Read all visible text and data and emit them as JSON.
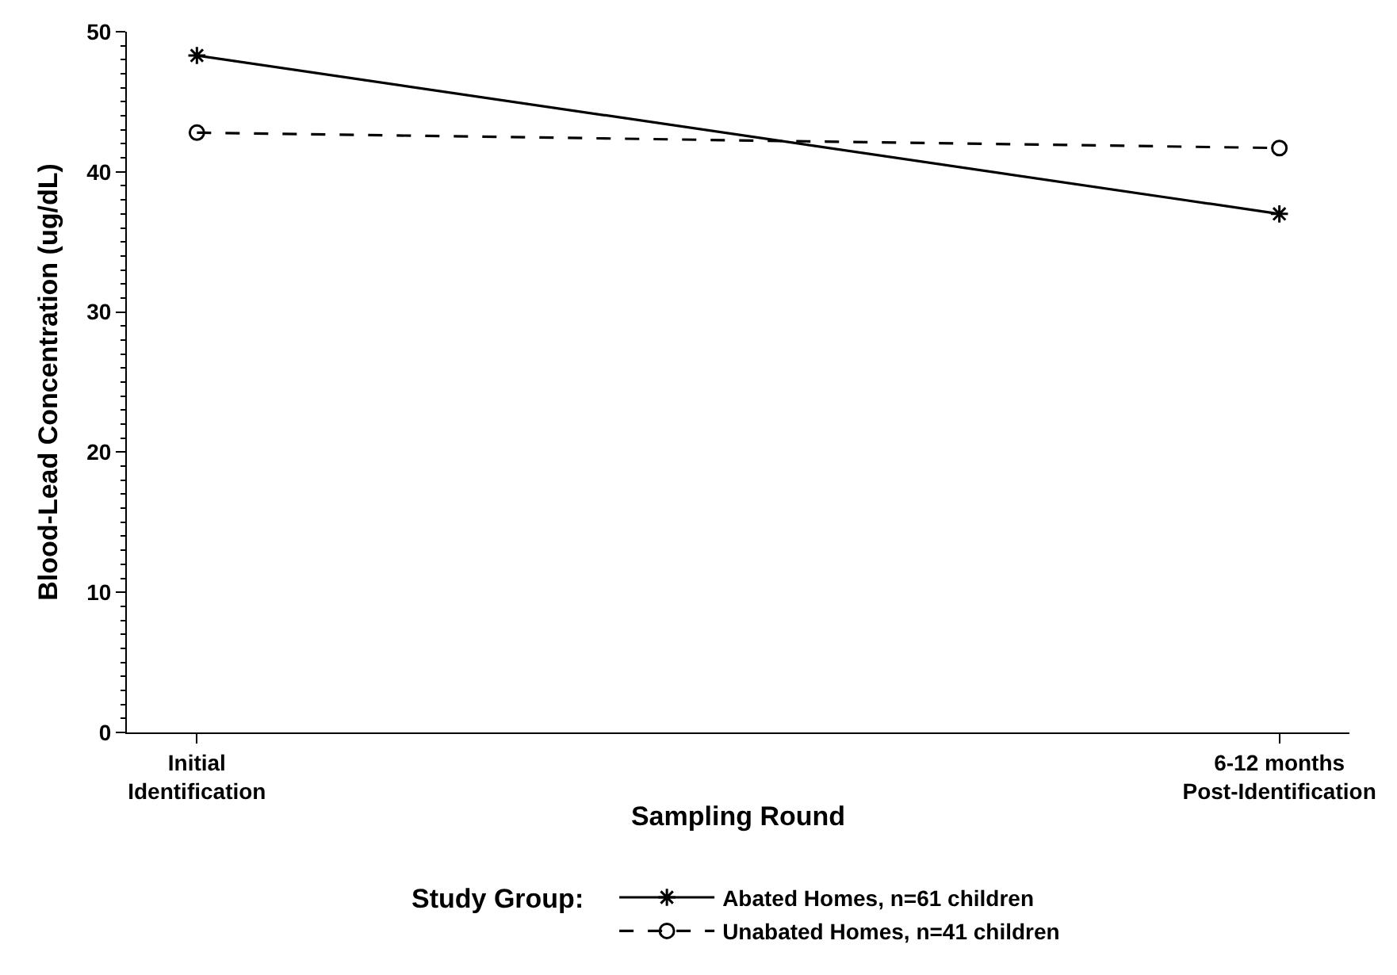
{
  "chart_data": {
    "type": "line",
    "xlabel": "Sampling Round",
    "ylabel": "Blood-Lead Concentration (ug/dL)",
    "legend_title": "Study Group:",
    "categories": [
      "Initial\nIdentification",
      "6-12 months\nPost-Identification"
    ],
    "series": [
      {
        "name": "Abated Homes, n=61 children",
        "color": "#000000",
        "values": [
          48.3,
          37.0
        ],
        "marker": "cross",
        "line_style": "solid"
      },
      {
        "name": "Unabated Homes, n=41 children",
        "color": "#000000",
        "values": [
          42.8,
          41.7
        ],
        "marker": "circle",
        "line_style": "dashed"
      }
    ],
    "ylim": [
      0,
      50
    ],
    "yticks": [
      0,
      10,
      20,
      30,
      40,
      50
    ],
    "grid": false,
    "legend": "bottom"
  }
}
